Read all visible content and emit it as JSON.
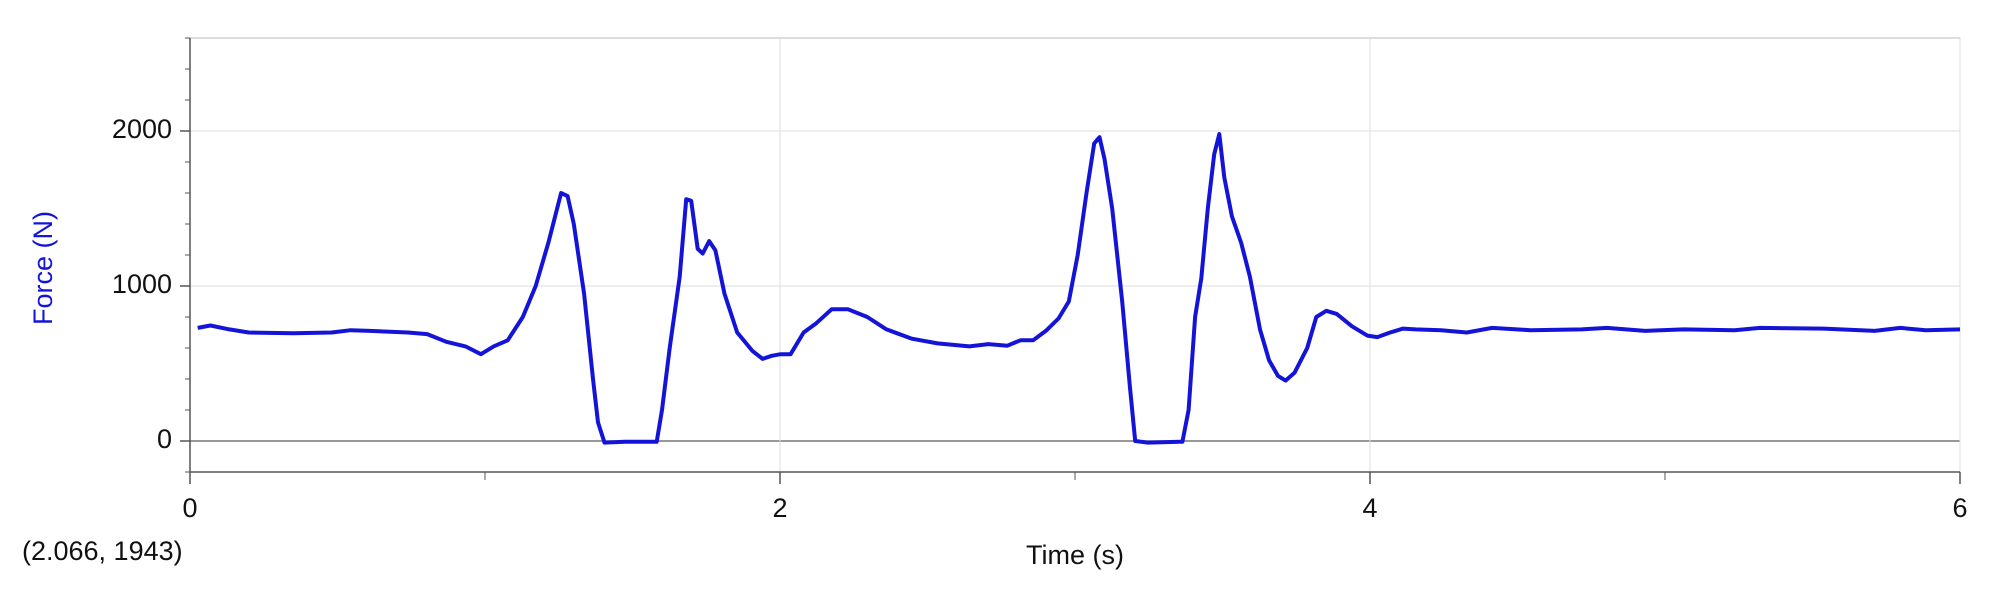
{
  "chart_data": {
    "type": "line",
    "xlabel": "Time (s)",
    "ylabel": "Force (N)",
    "annotation": "(2.066, 1943)",
    "x": [
      0.026,
      0.069,
      0.134,
      0.199,
      0.35,
      0.48,
      0.545,
      0.61,
      0.739,
      0.804,
      0.869,
      0.934,
      0.986,
      1.029,
      1.077,
      1.128,
      1.172,
      1.215,
      1.258,
      1.28,
      1.301,
      1.336,
      1.366,
      1.383,
      1.405,
      1.474,
      1.582,
      1.6,
      1.626,
      1.66,
      1.682,
      1.699,
      1.721,
      1.738,
      1.76,
      1.781,
      1.812,
      1.855,
      1.907,
      1.941,
      1.972,
      2.002,
      2.036,
      2.08,
      2.123,
      2.175,
      2.231,
      2.296,
      2.361,
      2.447,
      2.534,
      2.642,
      2.706,
      2.771,
      2.815,
      2.858,
      2.901,
      2.944,
      2.979,
      3.009,
      3.039,
      3.065,
      3.083,
      3.1,
      3.126,
      3.16,
      3.186,
      3.204,
      3.247,
      3.355,
      3.364,
      3.385,
      3.407,
      3.428,
      3.45,
      3.472,
      3.489,
      3.506,
      3.532,
      3.563,
      3.593,
      3.627,
      3.658,
      3.688,
      3.714,
      3.744,
      3.787,
      3.818,
      3.852,
      3.887,
      3.939,
      3.991,
      4.025,
      4.068,
      4.112,
      4.155,
      4.241,
      4.328,
      4.414,
      4.544,
      4.717,
      4.803,
      4.933,
      5.063,
      5.236,
      5.322,
      5.538,
      5.711,
      5.797,
      5.884,
      6.0
    ],
    "series": [
      {
        "name": "Force",
        "color": "#1414d8",
        "values": [
          730,
          745,
          720,
          700,
          695,
          700,
          715,
          710,
          700,
          690,
          640,
          610,
          560,
          610,
          650,
          800,
          1000,
          1280,
          1600,
          1580,
          1400,
          950,
          400,
          120,
          -10,
          -5,
          -5,
          200,
          600,
          1060,
          1560,
          1550,
          1240,
          1210,
          1290,
          1230,
          950,
          700,
          580,
          530,
          550,
          560,
          560,
          700,
          760,
          850,
          850,
          800,
          720,
          660,
          630,
          610,
          625,
          615,
          650,
          650,
          710,
          790,
          900,
          1200,
          1600,
          1920,
          1960,
          1820,
          1500,
          900,
          350,
          0,
          -10,
          -5,
          -5,
          200,
          800,
          1050,
          1500,
          1850,
          1980,
          1700,
          1450,
          1280,
          1060,
          720,
          520,
          420,
          390,
          440,
          600,
          800,
          840,
          820,
          740,
          680,
          670,
          700,
          725,
          720,
          715,
          700,
          730,
          715,
          720,
          730,
          710,
          720,
          715,
          730,
          725,
          710,
          730,
          715,
          720
        ]
      }
    ],
    "xlim": [
      0,
      6
    ],
    "ylim": [
      -200,
      2600
    ],
    "xticks": [
      0,
      2,
      4,
      6
    ],
    "yticks": [
      0,
      1000,
      2000
    ],
    "xminorticks": [
      1,
      3,
      5
    ],
    "yminorticks": [
      -200,
      200,
      400,
      600,
      800,
      1200,
      1400,
      1600,
      1800,
      2200,
      2400,
      2600
    ],
    "grid": true,
    "ylabel_color": "#1414d8"
  }
}
